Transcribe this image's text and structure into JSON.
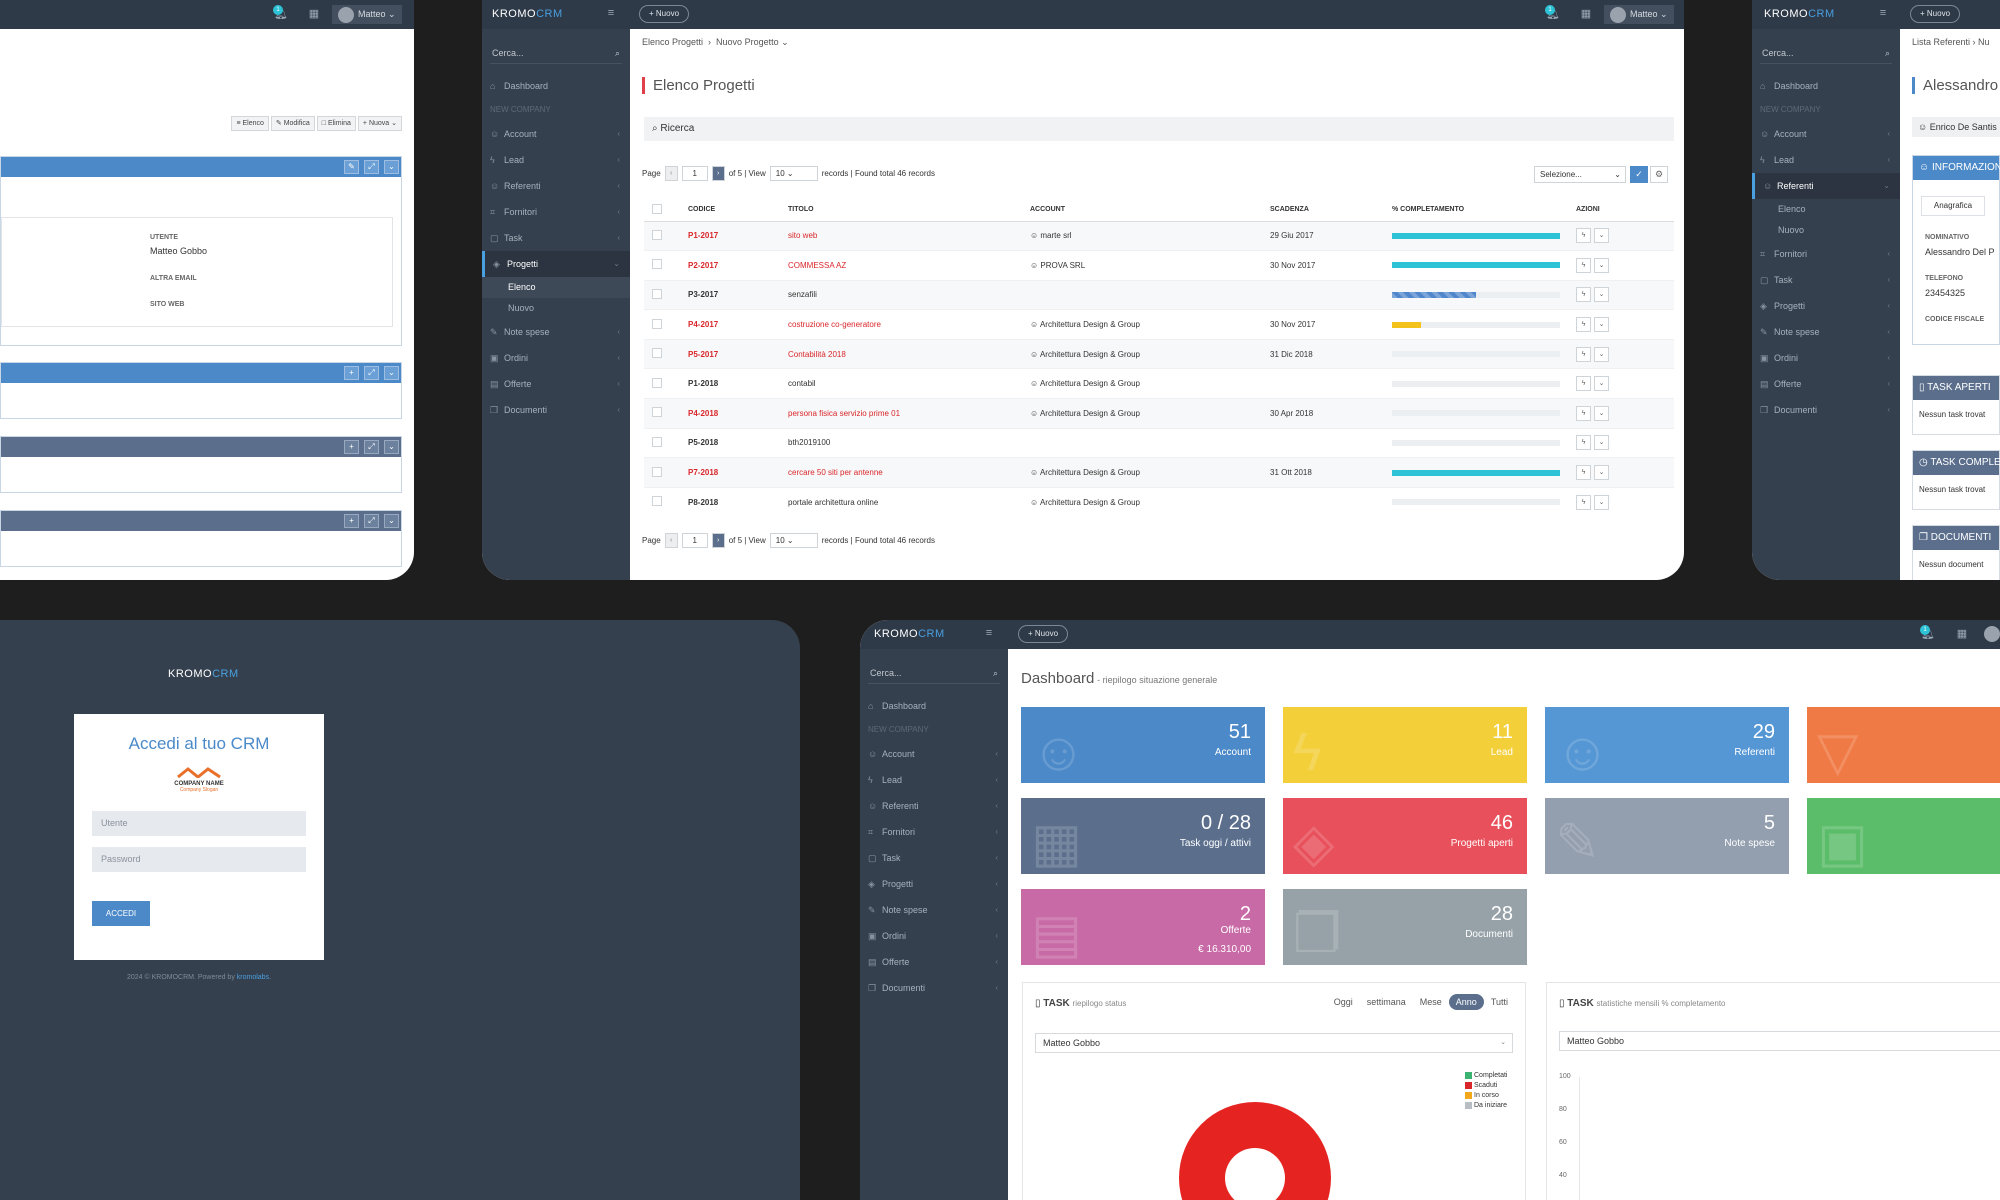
{
  "brand": {
    "a": "KROMO",
    "b": "CRM"
  },
  "common": {
    "new_btn": "Nuovo",
    "search_placeholder": "Cerca...",
    "user_name": "Matteo",
    "new_company": "NEW COMPANY"
  },
  "menu": {
    "dashboard": "Dashboard",
    "account": "Account",
    "lead": "Lead",
    "referenti": "Referenti",
    "fornitori": "Fornitori",
    "task": "Task",
    "progetti": "Progetti",
    "note_spese": "Note spese",
    "ordini": "Ordini",
    "offerte": "Offerte",
    "documenti": "Documenti",
    "elenco": "Elenco",
    "nuovo": "Nuovo"
  },
  "s1": {
    "badge": "1",
    "actions": {
      "elenco": "Elenco",
      "modifica": "Modifica",
      "elimina": "Elimina",
      "nuova": "Nuova"
    },
    "fields": {
      "utente_label": "UTENTE",
      "utente_value": "Matteo Gobbo",
      "altra_email_label": "ALTRA EMAIL",
      "sito_web_label": "SITO WEB"
    }
  },
  "s2": {
    "badge": "1",
    "breadcrumb": [
      "Elenco Progetti",
      "Nuovo Progetto"
    ],
    "title": "Elenco Progetti",
    "search": "Ricerca",
    "pager": {
      "page_label": "Page",
      "page": "1",
      "of": "of 5 | View",
      "view": "10",
      "found": "records | Found total 46 records"
    },
    "select_placeholder": "Selezione...",
    "columns": [
      "CODICE",
      "TITOLO",
      "ACCOUNT",
      "SCADENZA",
      "% COMPLETAMENTO",
      "AZIONI"
    ],
    "rows": [
      {
        "code": "P1-2017",
        "title": "sito web",
        "account": "marte srl",
        "due": "29 Giu 2017",
        "pct": 100,
        "color": "#2ec2d6",
        "red": true
      },
      {
        "code": "P2-2017",
        "title": "COMMESSA AZ",
        "account": "PROVA SRL",
        "due": "30 Nov 2017",
        "pct": 100,
        "color": "#2ec2d6",
        "red": true
      },
      {
        "code": "P3-2017",
        "title": "senzafili",
        "account": "",
        "due": "",
        "pct": 50,
        "color": "#4f86cc",
        "red": false
      },
      {
        "code": "P4-2017",
        "title": "costruzione co-generatore",
        "account": "Architettura Design & Group",
        "due": "30 Nov 2017",
        "pct": 17,
        "color": "#f3c31c",
        "red": true
      },
      {
        "code": "P5-2017",
        "title": "Contabilità 2018",
        "account": "Architettura Design & Group",
        "due": "31 Dic 2018",
        "pct": 0,
        "color": "#2ec2d6",
        "red": true
      },
      {
        "code": "P1-2018",
        "title": "contabil",
        "account": "Architettura Design & Group",
        "due": "",
        "pct": 0,
        "color": "#2ec2d6",
        "red": false
      },
      {
        "code": "P4-2018",
        "title": "persona fisica servizio prime 01",
        "account": "Architettura Design & Group",
        "due": "30 Apr 2018",
        "pct": 0,
        "color": "#2ec2d6",
        "red": true
      },
      {
        "code": "P5-2018",
        "title": "bth2019100",
        "account": "",
        "due": "",
        "pct": 0,
        "color": "#2ec2d6",
        "red": false
      },
      {
        "code": "P7-2018",
        "title": "cercare 50 siti per antenne",
        "account": "Architettura Design & Group",
        "due": "31 Ott 2018",
        "pct": 100,
        "color": "#2ec2d6",
        "red": true
      },
      {
        "code": "P8-2018",
        "title": "portale architettura online",
        "account": "Architettura Design & Group",
        "due": "",
        "pct": 0,
        "color": "#2ec2d6",
        "red": false
      }
    ]
  },
  "s3": {
    "breadcrumb": [
      "Lista Referenti",
      "Nu"
    ],
    "title": "Alessandro D",
    "owner": "Enrico De Santis",
    "info_title": "INFORMAZION",
    "tab": "Anagrafica",
    "fields": {
      "nominativo_label": "NOMINATIVO",
      "nominativo_value": "Alessandro Del P",
      "telefono_label": "TELEFONO",
      "telefono_value": "23454325",
      "cf_label": "CODICE FISCALE"
    },
    "task_aperti": "TASK APERTI",
    "task_aperti_empty": "Nessun task trovat",
    "task_completi": "TASK COMPLE",
    "task_completi_empty": "Nessun task trovat",
    "documenti": "DOCUMENTI",
    "documenti_empty": "Nessun document"
  },
  "s4": {
    "title": "Accedi al tuo CRM",
    "company": "COMPANY NAME",
    "company_sub": "Company Slogan",
    "user_ph": "Utente",
    "pass_ph": "Password",
    "submit": "ACCEDI",
    "footer_pre": "2024 © KROMOCRM. Powered by ",
    "footer_link": "kromolabs",
    "footer_post": "."
  },
  "s5": {
    "badge": "1",
    "title": "Dashboard",
    "subtitle": "- riepilogo situazione generale",
    "tiles": [
      {
        "num": "51",
        "label": "Account",
        "color": "#4b89c8",
        "icon": "user-icon"
      },
      {
        "num": "11",
        "label": "Lead",
        "color": "#f3cf3a",
        "icon": "bolt-icon"
      },
      {
        "num": "29",
        "label": "Referenti",
        "color": "#5596d4",
        "icon": "users-icon"
      },
      {
        "num": "",
        "label": "",
        "color": "#f07a45",
        "icon": "basket-icon"
      },
      {
        "num": "0 / 28",
        "label": "Task oggi / attivi",
        "color": "#5b6f8d",
        "icon": "calendar-icon"
      },
      {
        "num": "46",
        "label": "Progetti aperti",
        "color": "#e8505b",
        "icon": "layers-icon"
      },
      {
        "num": "5",
        "label": "Note spese",
        "color": "#939eae",
        "icon": "pencil-icon"
      },
      {
        "num": "",
        "label": "",
        "color": "#5bbd6a",
        "icon": "briefcase-icon"
      },
      {
        "num": "2",
        "label": "Offerte",
        "sub": "€ 16.310,00",
        "color": "#c86aa6",
        "icon": "calculator-icon"
      },
      {
        "num": "28",
        "label": "Documenti",
        "color": "#96a2a8",
        "icon": "documents-icon"
      }
    ],
    "task_panel": {
      "title": "TASK",
      "subtitle": "riepilogo status",
      "periods": [
        "Oggi",
        "settimana",
        "Mese",
        "Anno",
        "Tutti"
      ],
      "selected": "Anno",
      "user": "Matteo Gobbo",
      "legend": [
        "Completati",
        "Scaduti",
        "In corso",
        "Da iniziare"
      ],
      "legend_colors": [
        "#3cb371",
        "#d9262a",
        "#f3a81c",
        "#b9bec4"
      ]
    },
    "stats_panel": {
      "title": "TASK",
      "subtitle": "statistiche mensili % completamento",
      "user": "Matteo Gobbo",
      "yticks": [
        "100",
        "80",
        "60",
        "40"
      ]
    }
  }
}
